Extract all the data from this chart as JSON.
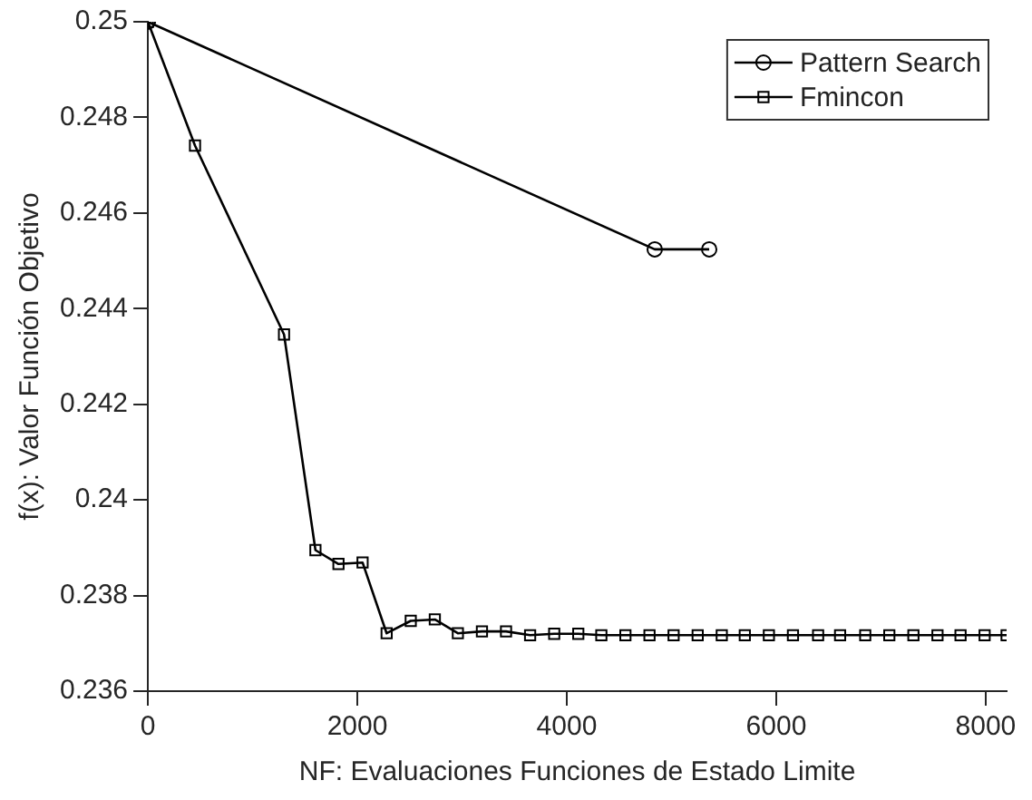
{
  "chart_data": {
    "type": "line",
    "xlabel": "NF: Evaluaciones Funciones de Estado Limite",
    "ylabel": "f(x): Valor Función Objetivo",
    "xlim": [
      0,
      8200
    ],
    "xticks": [
      0,
      2000,
      4000,
      6000,
      8000
    ],
    "ylim": [
      0.236,
      0.25
    ],
    "yticks": [
      0.236,
      0.238,
      0.24,
      0.242,
      0.244,
      0.246,
      0.248,
      0.25
    ],
    "grid": false,
    "legend": "top right",
    "line_style": "solid",
    "series": [
      {
        "name": "Pattern Search",
        "color": "#000000",
        "marker": "circle",
        "x": [
          0,
          4840,
          5360
        ],
        "values": [
          0.25,
          0.24524,
          0.24524
        ]
      },
      {
        "name": "Fmincon",
        "color": "#000000",
        "marker": "square",
        "x": [
          0,
          450,
          1300,
          1600,
          1820,
          2050,
          2280,
          2510,
          2740,
          2960,
          3190,
          3420,
          3650,
          3880,
          4110,
          4330,
          4560,
          4790,
          5020,
          5250,
          5480,
          5700,
          5930,
          6160,
          6400,
          6610,
          6850,
          7080,
          7310,
          7540,
          7760,
          7990,
          8200
        ],
        "values": [
          0.25,
          0.24741,
          0.24346,
          0.23895,
          0.23866,
          0.23869,
          0.23721,
          0.23747,
          0.2375,
          0.23721,
          0.23725,
          0.23725,
          0.23717,
          0.2372,
          0.2372,
          0.23717,
          0.23717,
          0.23717,
          0.23717,
          0.23717,
          0.23717,
          0.23717,
          0.23717,
          0.23717,
          0.23717,
          0.23717,
          0.23717,
          0.23717,
          0.23717,
          0.23717,
          0.23717,
          0.23717,
          0.23717
        ]
      }
    ]
  }
}
